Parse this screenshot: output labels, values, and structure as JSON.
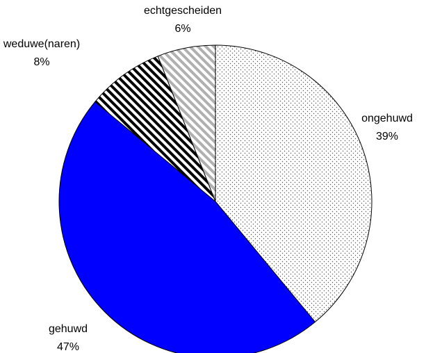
{
  "chart_data": {
    "type": "pie",
    "categories": [
      "ongehuwd",
      "gehuwd",
      "weduwe(naren)",
      "echtgescheiden"
    ],
    "values": [
      39,
      47,
      8,
      6
    ],
    "value_labels": [
      "39%",
      "47%",
      "8%",
      "6%"
    ],
    "colors": [
      "#555555",
      "#0000ff",
      "#000000",
      "#b0b0b0"
    ],
    "patterns": [
      "dots",
      "solid",
      "stripes",
      "stripes"
    ]
  }
}
